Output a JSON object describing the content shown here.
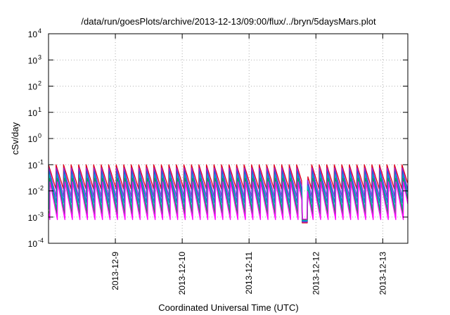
{
  "chart_data": {
    "type": "line",
    "title": "/data/run/goesPlots/archive/2013-12-13/09:00/flux/../bryn/5daysMars.plot",
    "xlabel": "Coordinated Universal Time (UTC)",
    "ylabel": "cSv/day",
    "y_scale": "log",
    "ylim": [
      0.0001,
      10000
    ],
    "y_ticks": [
      {
        "value": 0.0001,
        "base": "10",
        "exp": "-4"
      },
      {
        "value": 0.001,
        "base": "10",
        "exp": "-3"
      },
      {
        "value": 0.01,
        "base": "10",
        "exp": "-2"
      },
      {
        "value": 0.1,
        "base": "10",
        "exp": "-1"
      },
      {
        "value": 1,
        "base": "10",
        "exp": "0"
      },
      {
        "value": 10,
        "base": "10",
        "exp": "1"
      },
      {
        "value": 100,
        "base": "10",
        "exp": "2"
      },
      {
        "value": 1000,
        "base": "10",
        "exp": "3"
      },
      {
        "value": 10000,
        "base": "10",
        "exp": "4"
      }
    ],
    "xlim": [
      "2013-12-08T00:00",
      "2013-12-13T09:00"
    ],
    "x_ticks": [
      {
        "value": "2013-12-09T00:00",
        "label": "2013-12-9"
      },
      {
        "value": "2013-12-10T00:00",
        "label": "2013-12-10"
      },
      {
        "value": "2013-12-11T00:00",
        "label": "2013-12-11"
      },
      {
        "value": "2013-12-12T00:00",
        "label": "2013-12-12"
      },
      {
        "value": "2013-12-13T00:00",
        "label": "2013-12-13"
      }
    ],
    "grid": true,
    "legend": "none",
    "pattern": {
      "period_hours": 2.7,
      "peak_values": [
        0.1,
        0.075,
        0.055,
        0.042,
        0.03,
        0.022
      ],
      "trough_values": [
        0.012,
        0.006,
        0.0035,
        0.002,
        0.0013,
        0.0008
      ],
      "anomaly": {
        "start": "2013-12-11T19:00",
        "end": "2013-12-11T21:00",
        "value": 0.0006
      }
    },
    "series": [
      {
        "color": "#e0001b",
        "peak": 0.1,
        "trough": 0.012
      },
      {
        "color": "#8a2be2",
        "peak": 0.075,
        "trough": 0.006
      },
      {
        "color": "#1e5ed6",
        "peak": 0.055,
        "trough": 0.0035
      },
      {
        "color": "#00b0c8",
        "peak": 0.042,
        "trough": 0.002
      },
      {
        "color": "#1a9a3a",
        "peak": 0.03,
        "trough": 0.0013
      },
      {
        "color": "#ff00ff",
        "peak": 0.022,
        "trough": 0.0008
      }
    ]
  }
}
